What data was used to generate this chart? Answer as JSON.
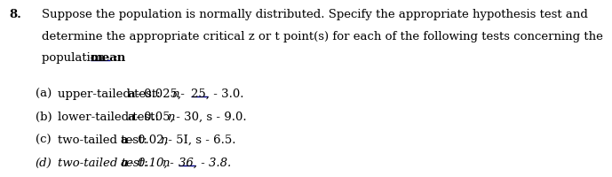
{
  "background_color": "#ffffff",
  "text_color": "#000000",
  "underline_color": "#00008B",
  "font_size": 9.5,
  "question_number": "8.",
  "header_lines": [
    "Suppose the population is normally distributed. Specify the appropriate hypothesis test and",
    "determine the appropriate critical z or t point(s) for each of the following tests concerning the",
    "population "
  ],
  "mean_text": "mean",
  "mean_colon": " :",
  "items": [
    {
      "label": "(a)",
      "label_style": "normal",
      "parts": [
        {
          "t": "upper-tailed test: ",
          "w": "normal",
          "s": "normal"
        },
        {
          "t": "a",
          "w": "bold",
          "s": "normal"
        },
        {
          "t": " - 0.025, ",
          "w": "normal",
          "s": "normal"
        },
        {
          "t": "n",
          "w": "normal",
          "s": "italic"
        },
        {
          "t": " - ",
          "w": "normal",
          "s": "normal"
        },
        {
          "t": "25,  ",
          "w": "normal",
          "s": "normal",
          "ul": true
        },
        {
          "t": " - 3.0.",
          "w": "normal",
          "s": "normal"
        }
      ]
    },
    {
      "label": "(b)",
      "label_style": "normal",
      "parts": [
        {
          "t": "lower-tailed test: ",
          "w": "normal",
          "s": "normal"
        },
        {
          "t": "a",
          "w": "bold",
          "s": "normal"
        },
        {
          "t": " - 0.05, ",
          "w": "normal",
          "s": "normal"
        },
        {
          "t": "n",
          "w": "normal",
          "s": "italic"
        },
        {
          "t": " - 30, s - 9.0.",
          "w": "normal",
          "s": "normal"
        }
      ]
    },
    {
      "label": "(c)",
      "label_style": "normal",
      "parts": [
        {
          "t": "two-tailed test: ",
          "w": "normal",
          "s": "normal"
        },
        {
          "t": "a",
          "w": "bold",
          "s": "normal"
        },
        {
          "t": " - 0.02, ",
          "w": "normal",
          "s": "normal"
        },
        {
          "t": "n",
          "w": "normal",
          "s": "italic"
        },
        {
          "t": " - 5I, s - 6.5.",
          "w": "normal",
          "s": "normal"
        }
      ]
    },
    {
      "label": "(d)",
      "label_style": "italic",
      "parts": [
        {
          "t": "two-tailed test: ",
          "w": "normal",
          "s": "italic"
        },
        {
          "t": "a",
          "w": "bold",
          "s": "italic"
        },
        {
          "t": " - 0.10, ",
          "w": "normal",
          "s": "italic"
        },
        {
          "t": "n",
          "w": "normal",
          "s": "italic"
        },
        {
          "t": " - ",
          "w": "normal",
          "s": "italic"
        },
        {
          "t": "36,  ",
          "w": "normal",
          "s": "italic",
          "ul": true
        },
        {
          "t": " - 3.8.",
          "w": "normal",
          "s": "italic"
        }
      ]
    }
  ]
}
